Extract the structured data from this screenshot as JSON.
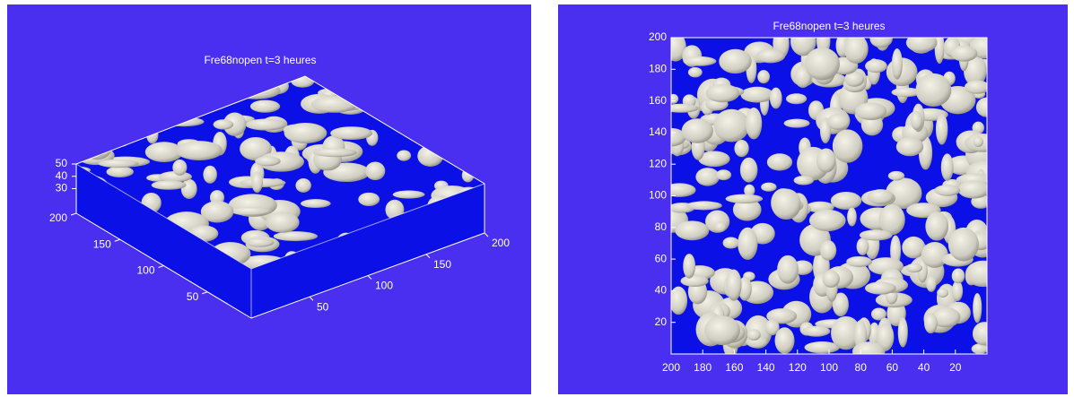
{
  "panels": [
    {
      "title": "Fre68nopen t=3 heures",
      "xlim": [
        0,
        200
      ],
      "xticks": [
        50,
        100,
        150,
        200
      ],
      "ylim": [
        0,
        200
      ],
      "yticks": [
        50,
        100,
        150,
        200
      ],
      "zlim": [
        10,
        50
      ],
      "zticks": [
        30,
        40,
        50
      ]
    },
    {
      "title": "Fre68nopen t=3 heures",
      "xlim": [
        200,
        0
      ],
      "xticks": [
        200,
        180,
        160,
        140,
        120,
        100,
        80,
        60,
        40,
        20
      ],
      "ylim": [
        0,
        200
      ],
      "yticks": [
        20,
        40,
        60,
        80,
        100,
        120,
        140,
        160,
        180,
        200
      ]
    }
  ]
}
